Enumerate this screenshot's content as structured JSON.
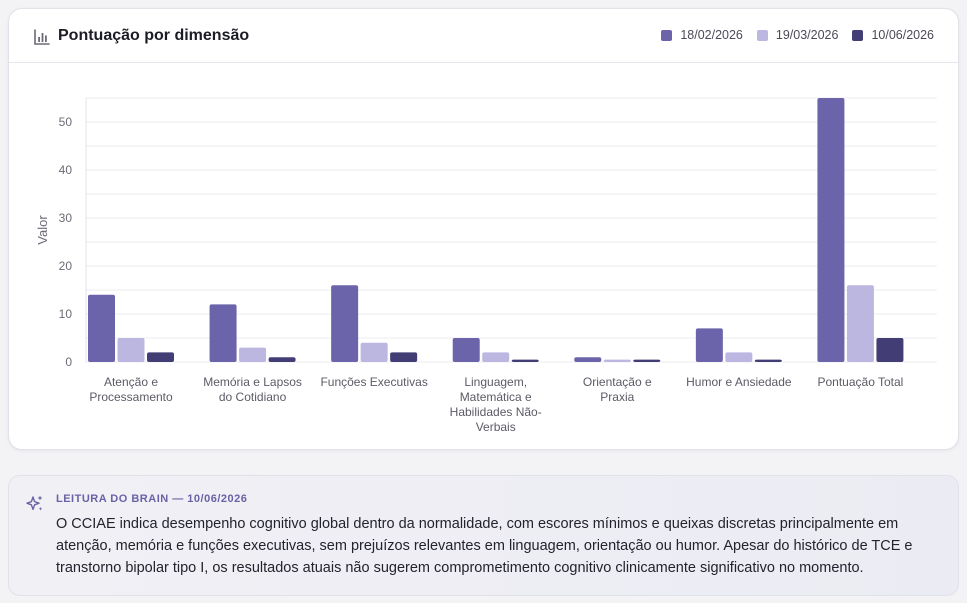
{
  "panel": {
    "title": "Pontuação por dimensão",
    "title_icon": "bar-chart-icon"
  },
  "colors": {
    "series_1": "#6b64aa",
    "series_2": "#bbb7e0",
    "series_3": "#423d74",
    "gridline": "#ececf1"
  },
  "chart_data": {
    "type": "bar",
    "ylabel": "Valor",
    "xlabel": "",
    "ylim": [
      0,
      55
    ],
    "yticks": [
      0,
      10,
      20,
      30,
      40,
      50
    ],
    "grid": true,
    "legend_position": "top-right",
    "categories": [
      [
        "Atenção e",
        "Processamento"
      ],
      [
        "Memória e Lapsos",
        "do Cotidiano"
      ],
      [
        "Funções Executivas"
      ],
      [
        "Linguagem,",
        "Matemática e",
        "Habilidades Não-",
        "Verbais"
      ],
      [
        "Orientação e",
        "Praxia"
      ],
      [
        "Humor e Ansiedade"
      ],
      [
        "Pontuação Total"
      ]
    ],
    "series": [
      {
        "name": "18/02/2026",
        "values": [
          14,
          12,
          16,
          5,
          1,
          7,
          55
        ]
      },
      {
        "name": "19/03/2026",
        "values": [
          5,
          3,
          4,
          2,
          0.5,
          2,
          16
        ]
      },
      {
        "name": "10/06/2026",
        "values": [
          2,
          1,
          2,
          0.5,
          0.5,
          0.5,
          5
        ]
      }
    ]
  },
  "insight": {
    "label": "LEITURA DO BRAIN — 10/06/2026",
    "icon": "sparkles-icon",
    "text": "O CCIAE indica desempenho cognitivo global dentro da normalidade, com escores mínimos e queixas discretas principalmente em atenção, memória e funções executivas, sem prejuízos relevantes em linguagem, orientação ou humor. Apesar do histórico de TCE e transtorno bipolar tipo I, os resultados atuais não sugerem comprometimento cognitivo clinicamente significativo no momento."
  }
}
